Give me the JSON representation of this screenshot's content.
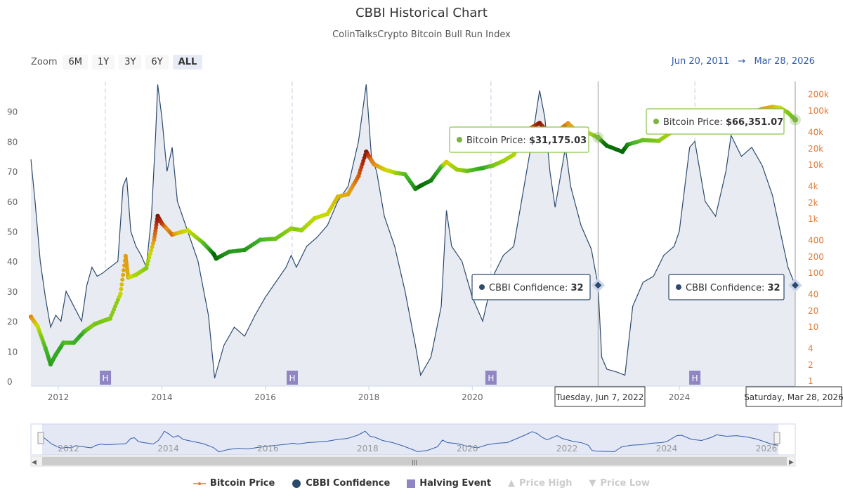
{
  "header": {
    "title": "CBBI Historical Chart",
    "subtitle": "ColinTalksCrypto Bitcoin Bull Run Index"
  },
  "zoom": {
    "label": "Zoom",
    "buttons": [
      "6M",
      "1Y",
      "3Y",
      "6Y",
      "ALL"
    ],
    "active": "ALL"
  },
  "range": {
    "from": "Jun 20, 2011",
    "arrow": "→",
    "to": "Mar 28, 2026"
  },
  "tooltips": [
    {
      "label": "Bitcoin Price: ",
      "value": "$31,175.03"
    },
    {
      "label": "Bitcoin Price: ",
      "value": "$66,351.07"
    },
    {
      "label": "CBBI Confidence: ",
      "value": "32"
    },
    {
      "label": "CBBI Confidence: ",
      "value": "32"
    }
  ],
  "crosshair_labels": [
    "Tuesday, Jun 7, 2022",
    "Saturday, Mar 28, 2026"
  ],
  "halving_marker": "H",
  "navigator_labels": [
    "2012",
    "2014",
    "2016",
    "2018",
    "2020",
    "2022",
    "2024",
    "2026"
  ],
  "navigator_handle": "|||",
  "legend": [
    {
      "name": "Bitcoin Price",
      "color": "#e07b39",
      "enabled": true
    },
    {
      "name": "CBBI Confidence",
      "color": "#2c4a6e",
      "enabled": true
    },
    {
      "name": "Halving Event",
      "color": "#9086c4",
      "enabled": true
    },
    {
      "name": "Price High",
      "color": "#cccccc",
      "enabled": false
    },
    {
      "name": "Price Low",
      "color": "#cccccc",
      "enabled": false
    }
  ],
  "colors": {
    "cbbi_line": "#2c4a6e",
    "cbbi_fill": "#e8ecf2",
    "halving": "#9086c4",
    "right_axis": "#e07b39",
    "tooltip_price_border": "#8bc34a",
    "tooltip_cbbi_border": "#2c4a6e"
  },
  "chart_data": {
    "type": "line",
    "x_range": [
      2011.47,
      2026.24
    ],
    "x_ticks": [
      "2012",
      "2014",
      "2016",
      "2018",
      "2020",
      "2022",
      "2024"
    ],
    "y_left": {
      "range": [
        0,
        100
      ],
      "ticks": [
        "0",
        "10",
        "20",
        "30",
        "40",
        "50",
        "60",
        "70",
        "80",
        "90"
      ]
    },
    "y_right": {
      "scale": "log",
      "ticks": [
        "1",
        "2",
        "4",
        "10",
        "20",
        "40",
        "100",
        "200",
        "400",
        "1k",
        "2k",
        "4k",
        "10k",
        "20k",
        "40k",
        "100k",
        "200k"
      ]
    },
    "halvings": [
      2012.91,
      2016.52,
      2020.36,
      2024.3
    ],
    "crosshairs": [
      2022.43,
      2026.24
    ],
    "series": [
      {
        "name": "CBBI Confidence",
        "x": [
          2011.47,
          2011.55,
          2011.65,
          2011.75,
          2011.85,
          2011.95,
          2012.05,
          2012.15,
          2012.3,
          2012.45,
          2012.55,
          2012.65,
          2012.75,
          2012.85,
          2013.0,
          2013.15,
          2013.25,
          2013.32,
          2013.4,
          2013.5,
          2013.6,
          2013.7,
          2013.8,
          2013.88,
          2013.92,
          2014.0,
          2014.1,
          2014.2,
          2014.3,
          2014.5,
          2014.7,
          2014.9,
          2015.02,
          2015.2,
          2015.4,
          2015.6,
          2015.8,
          2016.0,
          2016.2,
          2016.4,
          2016.5,
          2016.6,
          2016.8,
          2017.0,
          2017.2,
          2017.4,
          2017.6,
          2017.8,
          2017.95,
          2018.05,
          2018.15,
          2018.3,
          2018.5,
          2018.7,
          2018.9,
          2019.0,
          2019.2,
          2019.4,
          2019.5,
          2019.6,
          2019.8,
          2020.0,
          2020.2,
          2020.4,
          2020.6,
          2020.8,
          2021.0,
          2021.15,
          2021.3,
          2021.4,
          2021.5,
          2021.6,
          2021.8,
          2021.9,
          2022.1,
          2022.3,
          2022.43,
          2022.5,
          2022.6,
          2022.8,
          2022.95,
          2023.1,
          2023.3,
          2023.5,
          2023.7,
          2023.9,
          2024.0,
          2024.2,
          2024.3,
          2024.5,
          2024.7,
          2024.9,
          2025.0,
          2025.2,
          2025.4,
          2025.6,
          2025.8,
          2025.95,
          2026.1,
          2026.24
        ],
        "values": [
          74,
          60,
          40,
          28,
          18,
          22,
          20,
          30,
          25,
          20,
          32,
          38,
          35,
          36,
          38,
          40,
          65,
          68,
          50,
          45,
          42,
          38,
          55,
          82,
          99,
          88,
          70,
          78,
          60,
          50,
          40,
          22,
          1,
          12,
          18,
          15,
          22,
          28,
          33,
          38,
          42,
          38,
          45,
          48,
          52,
          60,
          65,
          80,
          99,
          75,
          70,
          55,
          45,
          30,
          12,
          2,
          8,
          25,
          57,
          45,
          40,
          28,
          20,
          35,
          42,
          45,
          65,
          80,
          97,
          88,
          70,
          58,
          78,
          65,
          52,
          44,
          32,
          8,
          4,
          3,
          2,
          25,
          33,
          35,
          42,
          45,
          50,
          78,
          80,
          60,
          55,
          70,
          82,
          75,
          78,
          72,
          62,
          50,
          38,
          32
        ]
      },
      {
        "name": "Bitcoin Price",
        "x": [
          2011.47,
          2011.6,
          2011.75,
          2011.85,
          2011.95,
          2012.1,
          2012.3,
          2012.5,
          2012.7,
          2012.9,
          2013.0,
          2013.2,
          2013.3,
          2013.35,
          2013.5,
          2013.7,
          2013.85,
          2013.92,
          2014.0,
          2014.2,
          2014.5,
          2014.8,
          2015.0,
          2015.05,
          2015.3,
          2015.6,
          2015.9,
          2016.2,
          2016.5,
          2016.7,
          2016.95,
          2017.2,
          2017.4,
          2017.6,
          2017.8,
          2017.95,
          2018.0,
          2018.1,
          2018.3,
          2018.5,
          2018.7,
          2018.9,
          2019.0,
          2019.2,
          2019.4,
          2019.5,
          2019.7,
          2019.9,
          2020.2,
          2020.4,
          2020.6,
          2020.8,
          2020.95,
          2021.1,
          2021.3,
          2021.5,
          2021.7,
          2021.85,
          2022.0,
          2022.2,
          2022.43,
          2022.6,
          2022.9,
          2023.0,
          2023.3,
          2023.6,
          2023.9,
          2024.1,
          2024.3,
          2024.6,
          2024.9,
          2025.0,
          2025.3,
          2025.6,
          2025.8,
          2025.95,
          2026.1,
          2026.24
        ],
        "values": [
          15,
          10,
          4,
          2,
          3,
          5,
          5,
          8,
          11,
          13,
          14,
          40,
          200,
          80,
          90,
          120,
          400,
          1100,
          800,
          500,
          600,
          350,
          220,
          180,
          240,
          260,
          400,
          420,
          650,
          600,
          1000,
          1200,
          2500,
          2800,
          6000,
          17000,
          14000,
          10000,
          8000,
          7000,
          6500,
          3500,
          4000,
          5000,
          9000,
          11000,
          8000,
          7500,
          8500,
          9500,
          11500,
          15000,
          29000,
          45000,
          58000,
          35000,
          45000,
          57000,
          42000,
          40000,
          31175,
          22000,
          17000,
          23000,
          28000,
          27000,
          42000,
          52000,
          65000,
          60000,
          95000,
          98000,
          85000,
          105000,
          115000,
          110000,
          90000,
          66351
        ]
      }
    ]
  }
}
